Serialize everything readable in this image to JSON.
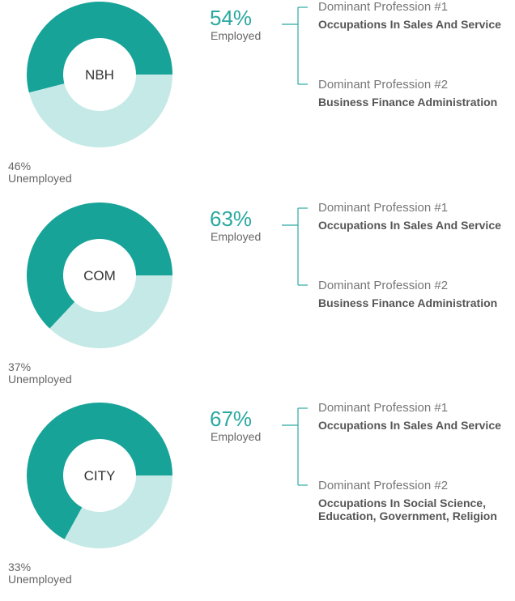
{
  "chart_data": [
    {
      "type": "donut",
      "center_label": "NBH",
      "categories": [
        "Employed",
        "Unemployed"
      ],
      "values": [
        54,
        46
      ],
      "value_labels": [
        "54%",
        "46%"
      ],
      "colors": [
        "#17a398",
        "#c4e9e6"
      ],
      "professions": [
        {
          "heading": "Dominant Profession #1",
          "name": "Occupations In Sales And Service"
        },
        {
          "heading": "Dominant Profession #2",
          "name": "Business Finance Administration"
        }
      ]
    },
    {
      "type": "donut",
      "center_label": "COM",
      "categories": [
        "Employed",
        "Unemployed"
      ],
      "values": [
        63,
        37
      ],
      "value_labels": [
        "63%",
        "37%"
      ],
      "colors": [
        "#17a398",
        "#c4e9e6"
      ],
      "professions": [
        {
          "heading": "Dominant Profession #1",
          "name": "Occupations In Sales And Service"
        },
        {
          "heading": "Dominant Profession #2",
          "name": "Business Finance Administration"
        }
      ]
    },
    {
      "type": "donut",
      "center_label": "CITY",
      "categories": [
        "Employed",
        "Unemployed"
      ],
      "values": [
        67,
        33
      ],
      "value_labels": [
        "67%",
        "33%"
      ],
      "colors": [
        "#17a398",
        "#c4e9e6"
      ],
      "professions": [
        {
          "heading": "Dominant Profession #1",
          "name": "Occupations In Sales And Service"
        },
        {
          "heading": "Dominant Profession #2",
          "name": "Occupations In Social Science, Education, Government, Religion"
        }
      ]
    }
  ]
}
